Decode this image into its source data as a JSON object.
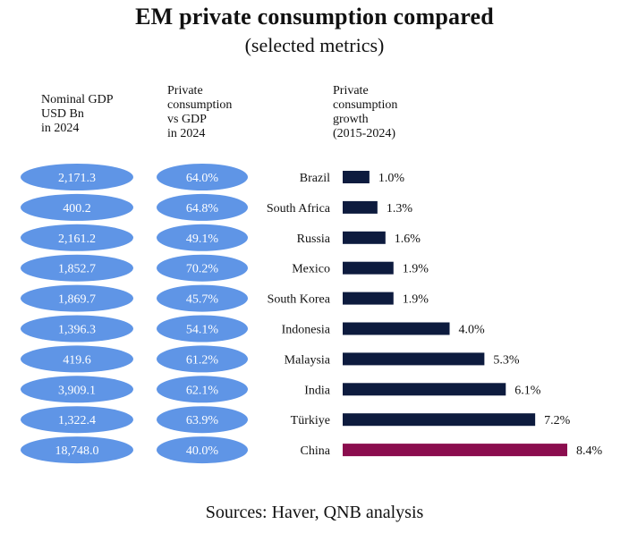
{
  "chart_data": {
    "type": "bar",
    "title": "EM private consumption compared",
    "subtitle": "(selected metrics)",
    "column_headers": {
      "gdp": "Nominal GDP\nUSD Bn\nin 2024",
      "share": "Private\nconsumption\nvs GDP\nin 2024",
      "growth": "Private\nconsumption\ngrowth\n(2015-2024)"
    },
    "categories": [
      "Brazil",
      "South Africa",
      "Russia",
      "Mexico",
      "South Korea",
      "Indonesia",
      "Malaysia",
      "India",
      "Türkiye",
      "China"
    ],
    "series": [
      {
        "name": "Nominal GDP USD Bn in 2024",
        "values": [
          2171.3,
          400.2,
          2161.2,
          1852.7,
          1869.7,
          1396.3,
          419.6,
          3909.1,
          1322.4,
          18748.0
        ],
        "labels": [
          "2,171.3",
          "400.2",
          "2,161.2",
          "1,852.7",
          "1,869.7",
          "1,396.3",
          "419.6",
          "3,909.1",
          "1,322.4",
          "18,748.0"
        ]
      },
      {
        "name": "Private consumption vs GDP in 2024",
        "values": [
          64.0,
          64.8,
          49.1,
          70.2,
          45.7,
          54.1,
          61.2,
          62.1,
          63.9,
          40.0
        ],
        "labels": [
          "64.0%",
          "64.8%",
          "49.1%",
          "70.2%",
          "45.7%",
          "54.1%",
          "61.2%",
          "62.1%",
          "63.9%",
          "40.0%"
        ]
      },
      {
        "name": "Private consumption growth (2015-2024)",
        "values": [
          1.0,
          1.3,
          1.6,
          1.9,
          1.9,
          4.0,
          5.3,
          6.1,
          7.2,
          8.4
        ],
        "labels": [
          "1.0%",
          "1.3%",
          "1.6%",
          "1.9%",
          "1.9%",
          "4.0%",
          "5.3%",
          "6.1%",
          "7.2%",
          "8.4%"
        ]
      }
    ],
    "highlight_category": "China",
    "xlim": [
      0,
      8.4
    ],
    "source": "Sources: Haver, QNB analysis"
  },
  "colors": {
    "pill": "#5f95e6",
    "bar": "#0d1b3e",
    "highlight": "#8b0d4e"
  }
}
